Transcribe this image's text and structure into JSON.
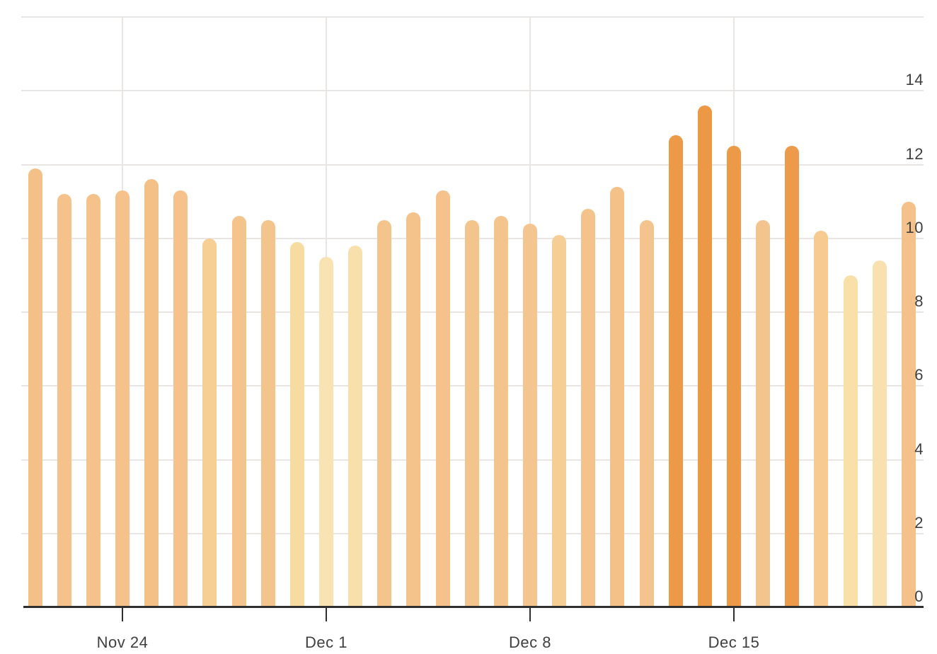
{
  "chart_data": {
    "type": "bar",
    "title": "",
    "xlabel": "",
    "ylabel": "",
    "x": [
      "Nov 21",
      "Nov 22",
      "Nov 23",
      "Nov 24",
      "Nov 25",
      "Nov 26",
      "Nov 27",
      "Nov 28",
      "Nov 29",
      "Nov 30",
      "Dec 1",
      "Dec 2",
      "Dec 3",
      "Dec 4",
      "Dec 5",
      "Dec 6",
      "Dec 7",
      "Dec 8",
      "Dec 9",
      "Dec 10",
      "Dec 11",
      "Dec 12",
      "Dec 13",
      "Dec 14",
      "Dec 15",
      "Dec 16",
      "Dec 17",
      "Dec 18",
      "Dec 19",
      "Dec 20",
      "Dec 21"
    ],
    "values": [
      11.9,
      11.2,
      11.2,
      11.3,
      11.6,
      11.3,
      10.0,
      10.6,
      10.5,
      9.9,
      9.5,
      9.8,
      10.5,
      10.7,
      11.3,
      10.5,
      10.6,
      10.4,
      10.1,
      10.8,
      11.4,
      10.5,
      12.8,
      13.6,
      12.5,
      10.5,
      12.5,
      10.2,
      9.0,
      9.4,
      11.0
    ],
    "bar_colors": [
      "#f3c088",
      "#f4c28a",
      "#f4c28a",
      "#f4c28a",
      "#f3c188",
      "#f4c28a",
      "#f5cf94",
      "#f4c48d",
      "#f4c48d",
      "#f7dca1",
      "#f9e3b3",
      "#f8e0ac",
      "#f4c48d",
      "#f4c38c",
      "#f4c28a",
      "#f4c48d",
      "#f4c48d",
      "#f5c58f",
      "#f6cd95",
      "#f4c38b",
      "#f4c189",
      "#f3c48e",
      "#ed9a48",
      "#ec9845",
      "#ed9a48",
      "#f3c48e",
      "#ed9b4a",
      "#f6ca90",
      "#f9dfa8",
      "#f8e1ae",
      "#f3c189"
    ],
    "x_tick_labels": [
      "Nov 24",
      "Dec 1",
      "Dec 8",
      "Dec 15"
    ],
    "x_tick_indices": [
      3,
      10,
      17,
      24
    ],
    "y_tick_labels": [
      "0",
      "2",
      "4",
      "6",
      "8",
      "10",
      "12",
      "14"
    ],
    "y_tick_values": [
      0,
      2,
      4,
      6,
      8,
      10,
      12,
      14
    ],
    "grid_values": [
      2,
      4,
      6,
      8,
      10,
      12,
      14,
      16
    ],
    "ylim": [
      0,
      16
    ],
    "legend": "none",
    "grid": "on",
    "y_axis_side": "right"
  },
  "colors": {
    "grid": "#e9e5e2",
    "axis": "#2f2f2f",
    "tick": "#2f2f2f",
    "text": "#3f3f3f",
    "background": "#ffffff",
    "accent_dark": "#ec9845",
    "accent_mid": "#f4c28a",
    "accent_pale": "#f9e3b3"
  }
}
